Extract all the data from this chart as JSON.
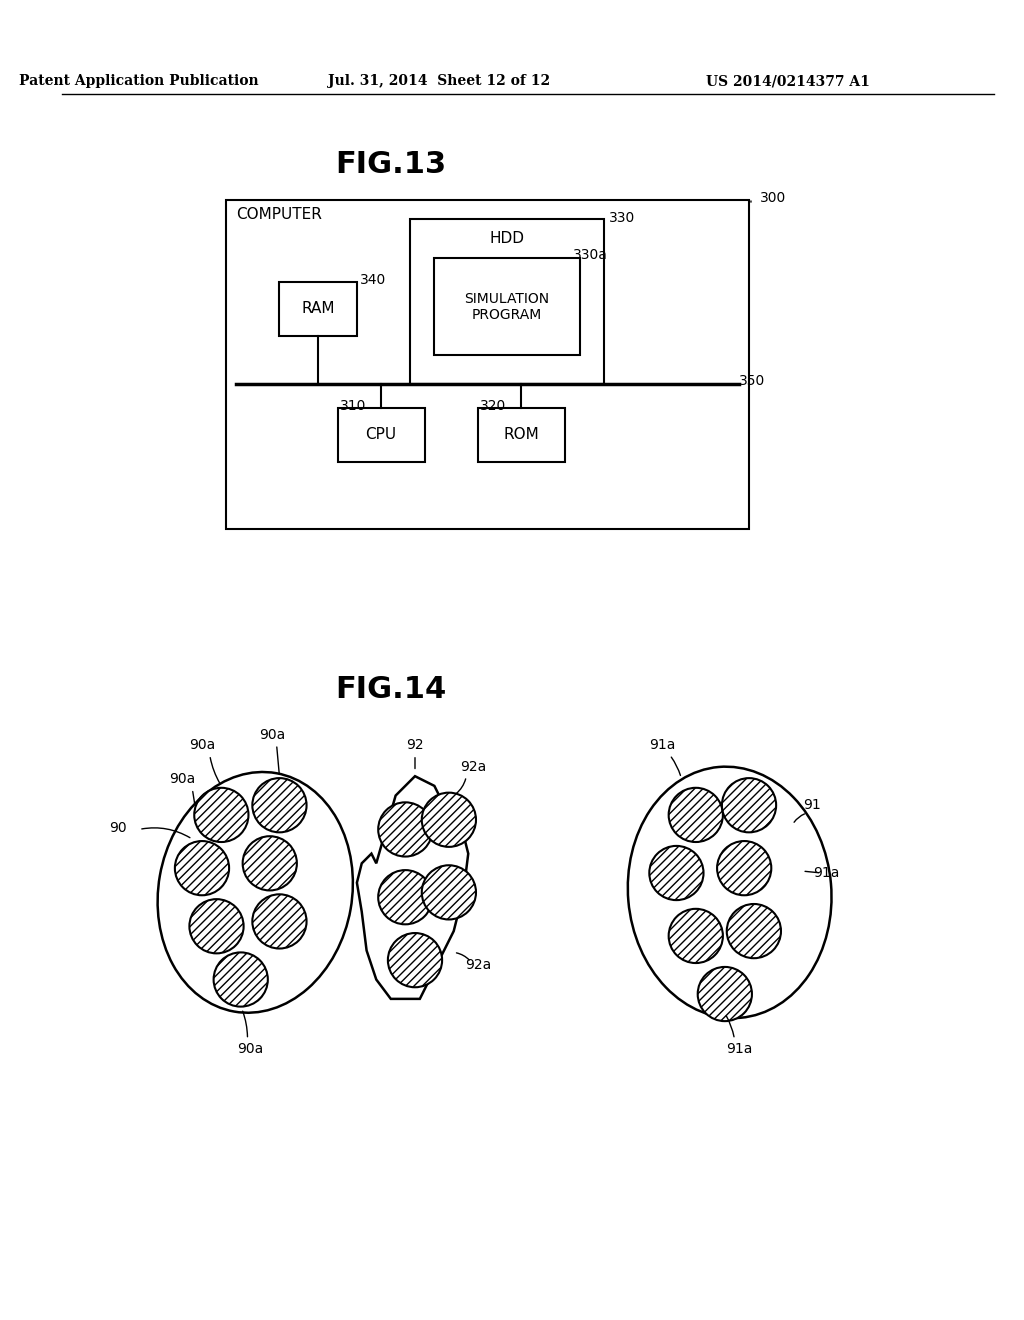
{
  "background_color": "#ffffff",
  "header_text": "Patent Application Publication",
  "header_date": "Jul. 31, 2014  Sheet 12 of 12",
  "header_patent": "US 2014/0214377 A1",
  "fig13_title": "FIG.13",
  "fig14_title": "FIG.14",
  "fig13_label_300": "300",
  "fig13_label_330": "330",
  "fig13_label_330a": "330a",
  "fig13_label_340": "340",
  "fig13_label_350": "350",
  "fig13_label_310": "310",
  "fig13_label_320": "320",
  "fig13_computer_text": "COMPUTER",
  "fig13_hdd_text": "HDD",
  "fig13_sim_text": "SIMULATION\nPROGRAM",
  "fig13_ram_text": "RAM",
  "fig13_cpu_text": "CPU",
  "fig13_rom_text": "ROM",
  "fig14_label_90": "90",
  "fig14_label_90a_list": [
    "90a",
    "90a",
    "90a",
    "90a"
  ],
  "fig14_label_92": "92",
  "fig14_label_92a_list": [
    "92a",
    "92a"
  ],
  "fig14_label_91": "91",
  "fig14_label_91a_list": [
    "91a",
    "91a",
    "91a"
  ],
  "line_color": "#000000",
  "text_color": "#000000",
  "hatch_pattern": "////"
}
